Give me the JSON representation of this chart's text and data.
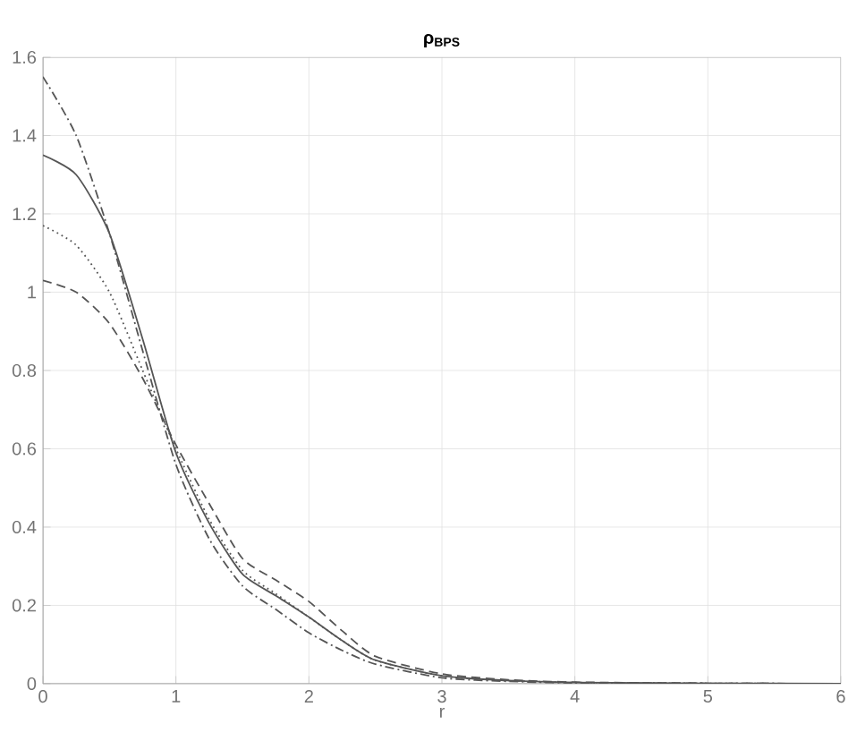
{
  "chart_data": {
    "type": "line",
    "title": "ρ$_{BPS}$",
    "xlabel": "r",
    "x": [
      0,
      0.25,
      0.5,
      0.75,
      1,
      1.25,
      1.5,
      1.75,
      2,
      2.25,
      2.5,
      3,
      3.5,
      4,
      5,
      6
    ],
    "series": [
      {
        "color": "#555555",
        "line_style": "solid",
        "values": [
          1.35,
          1.3,
          1.15,
          0.88,
          0.59,
          0.41,
          0.28,
          0.225,
          0.17,
          0.11,
          0.06,
          0.02,
          0.008,
          0.003,
          0.001,
          0
        ]
      },
      {
        "color": "#555555",
        "line_style": "dotted",
        "values": [
          1.17,
          1.12,
          1.0,
          0.8,
          0.6,
          0.42,
          0.29,
          0.23,
          0.17,
          0.11,
          0.06,
          0.02,
          0.008,
          0.003,
          0.001,
          0
        ]
      },
      {
        "color": "#555555",
        "line_style": "dashed",
        "values": [
          1.03,
          1.0,
          0.92,
          0.78,
          0.61,
          0.46,
          0.32,
          0.265,
          0.21,
          0.135,
          0.07,
          0.025,
          0.01,
          0.004,
          0.001,
          0
        ]
      },
      {
        "color": "#555555",
        "line_style": "dashdot",
        "values": [
          1.55,
          1.4,
          1.15,
          0.85,
          0.56,
          0.37,
          0.25,
          0.19,
          0.13,
          0.085,
          0.05,
          0.015,
          0.006,
          0.002,
          0.001,
          0
        ]
      }
    ],
    "xlim": [
      0,
      6
    ],
    "ylim": [
      0,
      1.6
    ],
    "xticks": [
      0,
      1,
      2,
      3,
      4,
      5,
      6
    ],
    "yticks": [
      0,
      0.2,
      0.4,
      0.6,
      0.8,
      1,
      1.2,
      1.4,
      1.6
    ],
    "grid": true
  }
}
